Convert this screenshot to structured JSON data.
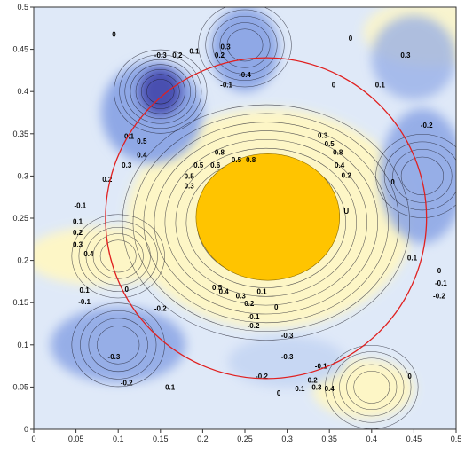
{
  "chart_data": {
    "type": "contour",
    "title": "",
    "xlabel": "",
    "ylabel": "",
    "xlim": [
      0,
      0.5
    ],
    "ylim": [
      0,
      0.5
    ],
    "x_ticks": [
      "0",
      "0.05",
      "0.1",
      "0.15",
      "0.2",
      "0.25",
      "0.3",
      "0.35",
      "0.4",
      "0.45",
      "0.5"
    ],
    "y_ticks": [
      "0",
      "0.05",
      "0.1",
      "0.15",
      "0.2",
      "0.25",
      "0.3",
      "0.35",
      "0.4",
      "0.45",
      "0.5"
    ],
    "grid": false,
    "colors": {
      "strong_negative": "#4a4fb0",
      "negative": "#8fa8e6",
      "weak_negative": "#c5d6f3",
      "neutral": "#f4f7fb",
      "positive": "#fff7c4",
      "strong_positive": "#ffc400",
      "circle": "#e02020"
    },
    "circle": {
      "center": [
        0.275,
        0.25
      ],
      "radius": 0.19
    },
    "features": [
      {
        "label": "large positive peak",
        "x": 0.275,
        "y": 0.245,
        "peak": 1.0
      },
      {
        "label": "negative trough",
        "x": 0.15,
        "y": 0.4,
        "peak": -0.6
      },
      {
        "label": "negative trough",
        "x": 0.25,
        "y": 0.455,
        "peak": -0.4
      },
      {
        "label": "positive lobe",
        "x": 0.1,
        "y": 0.205,
        "peak": 0.4
      },
      {
        "label": "positive lobe",
        "x": 0.4,
        "y": 0.05,
        "peak": 0.4
      },
      {
        "label": "negative region",
        "x": 0.1,
        "y": 0.1,
        "peak": -0.3
      },
      {
        "label": "negative region",
        "x": 0.46,
        "y": 0.3,
        "peak": -0.3
      }
    ],
    "contour_labels": [
      {
        "text": "0",
        "x": 0.095,
        "y": 0.465
      },
      {
        "text": "-0.3",
        "x": 0.15,
        "y": 0.44
      },
      {
        "text": "0.2",
        "x": 0.17,
        "y": 0.44
      },
      {
        "text": "0.1",
        "x": 0.19,
        "y": 0.445
      },
      {
        "text": "0.2",
        "x": 0.22,
        "y": 0.44
      },
      {
        "text": "0.3",
        "x": 0.227,
        "y": 0.45
      },
      {
        "text": "0",
        "x": 0.375,
        "y": 0.46
      },
      {
        "text": "0.3",
        "x": 0.44,
        "y": 0.44
      },
      {
        "text": "0.1",
        "x": 0.41,
        "y": 0.405
      },
      {
        "text": "-0.1",
        "x": 0.228,
        "y": 0.405
      },
      {
        "text": "-0.4",
        "x": 0.25,
        "y": 0.417
      },
      {
        "text": "0",
        "x": 0.355,
        "y": 0.405
      },
      {
        "text": "-0.2",
        "x": 0.465,
        "y": 0.357
      },
      {
        "text": "0.1",
        "x": 0.113,
        "y": 0.344
      },
      {
        "text": "0.5",
        "x": 0.128,
        "y": 0.338
      },
      {
        "text": "0.4",
        "x": 0.128,
        "y": 0.322
      },
      {
        "text": "0.3",
        "x": 0.11,
        "y": 0.31
      },
      {
        "text": "0.2",
        "x": 0.087,
        "y": 0.293
      },
      {
        "text": "-0.1",
        "x": 0.055,
        "y": 0.262
      },
      {
        "text": "0.1",
        "x": 0.052,
        "y": 0.243
      },
      {
        "text": "0.2",
        "x": 0.052,
        "y": 0.23
      },
      {
        "text": "0.3",
        "x": 0.052,
        "y": 0.216
      },
      {
        "text": "0.4",
        "x": 0.065,
        "y": 0.205
      },
      {
        "text": "0.3",
        "x": 0.184,
        "y": 0.285
      },
      {
        "text": "0.5",
        "x": 0.184,
        "y": 0.297
      },
      {
        "text": "0.8",
        "x": 0.22,
        "y": 0.325
      },
      {
        "text": "0.5",
        "x": 0.195,
        "y": 0.31
      },
      {
        "text": "0.6",
        "x": 0.215,
        "y": 0.31
      },
      {
        "text": "0.5",
        "x": 0.24,
        "y": 0.316
      },
      {
        "text": "0.8",
        "x": 0.257,
        "y": 0.316
      },
      {
        "text": "0.3",
        "x": 0.342,
        "y": 0.345
      },
      {
        "text": "0.5",
        "x": 0.35,
        "y": 0.335
      },
      {
        "text": "0.8",
        "x": 0.36,
        "y": 0.325
      },
      {
        "text": "0.4",
        "x": 0.362,
        "y": 0.31
      },
      {
        "text": "0.2",
        "x": 0.37,
        "y": 0.298
      },
      {
        "text": "U",
        "x": 0.37,
        "y": 0.255
      },
      {
        "text": "0",
        "x": 0.425,
        "y": 0.29
      },
      {
        "text": "0.1",
        "x": 0.448,
        "y": 0.2
      },
      {
        "text": "0",
        "x": 0.48,
        "y": 0.185
      },
      {
        "text": "-0.1",
        "x": 0.482,
        "y": 0.17
      },
      {
        "text": "-0.2",
        "x": 0.48,
        "y": 0.155
      },
      {
        "text": "0.1",
        "x": 0.06,
        "y": 0.162
      },
      {
        "text": "0",
        "x": 0.11,
        "y": 0.163
      },
      {
        "text": "-0.1",
        "x": 0.06,
        "y": 0.148
      },
      {
        "text": "-0.2",
        "x": 0.15,
        "y": 0.14
      },
      {
        "text": "0.5",
        "x": 0.217,
        "y": 0.165
      },
      {
        "text": "0.4",
        "x": 0.225,
        "y": 0.16
      },
      {
        "text": "0.3",
        "x": 0.245,
        "y": 0.155
      },
      {
        "text": "0.2",
        "x": 0.255,
        "y": 0.146
      },
      {
        "text": "0.1",
        "x": 0.27,
        "y": 0.16
      },
      {
        "text": "0",
        "x": 0.287,
        "y": 0.142
      },
      {
        "text": "-0.1",
        "x": 0.26,
        "y": 0.13
      },
      {
        "text": "-0.2",
        "x": 0.26,
        "y": 0.12
      },
      {
        "text": "-0.3",
        "x": 0.3,
        "y": 0.108
      },
      {
        "text": "-0.3",
        "x": 0.095,
        "y": 0.083
      },
      {
        "text": "-0.3",
        "x": 0.3,
        "y": 0.083
      },
      {
        "text": "-0.1",
        "x": 0.34,
        "y": 0.072
      },
      {
        "text": "-0.2",
        "x": 0.11,
        "y": 0.052
      },
      {
        "text": "-0.1",
        "x": 0.16,
        "y": 0.047
      },
      {
        "text": "-0.2",
        "x": 0.27,
        "y": 0.06
      },
      {
        "text": "0",
        "x": 0.29,
        "y": 0.04
      },
      {
        "text": "0.1",
        "x": 0.315,
        "y": 0.045
      },
      {
        "text": "0.2",
        "x": 0.33,
        "y": 0.055
      },
      {
        "text": "0.3",
        "x": 0.335,
        "y": 0.047
      },
      {
        "text": "0.4",
        "x": 0.35,
        "y": 0.045
      },
      {
        "text": "0",
        "x": 0.445,
        "y": 0.06
      }
    ]
  }
}
